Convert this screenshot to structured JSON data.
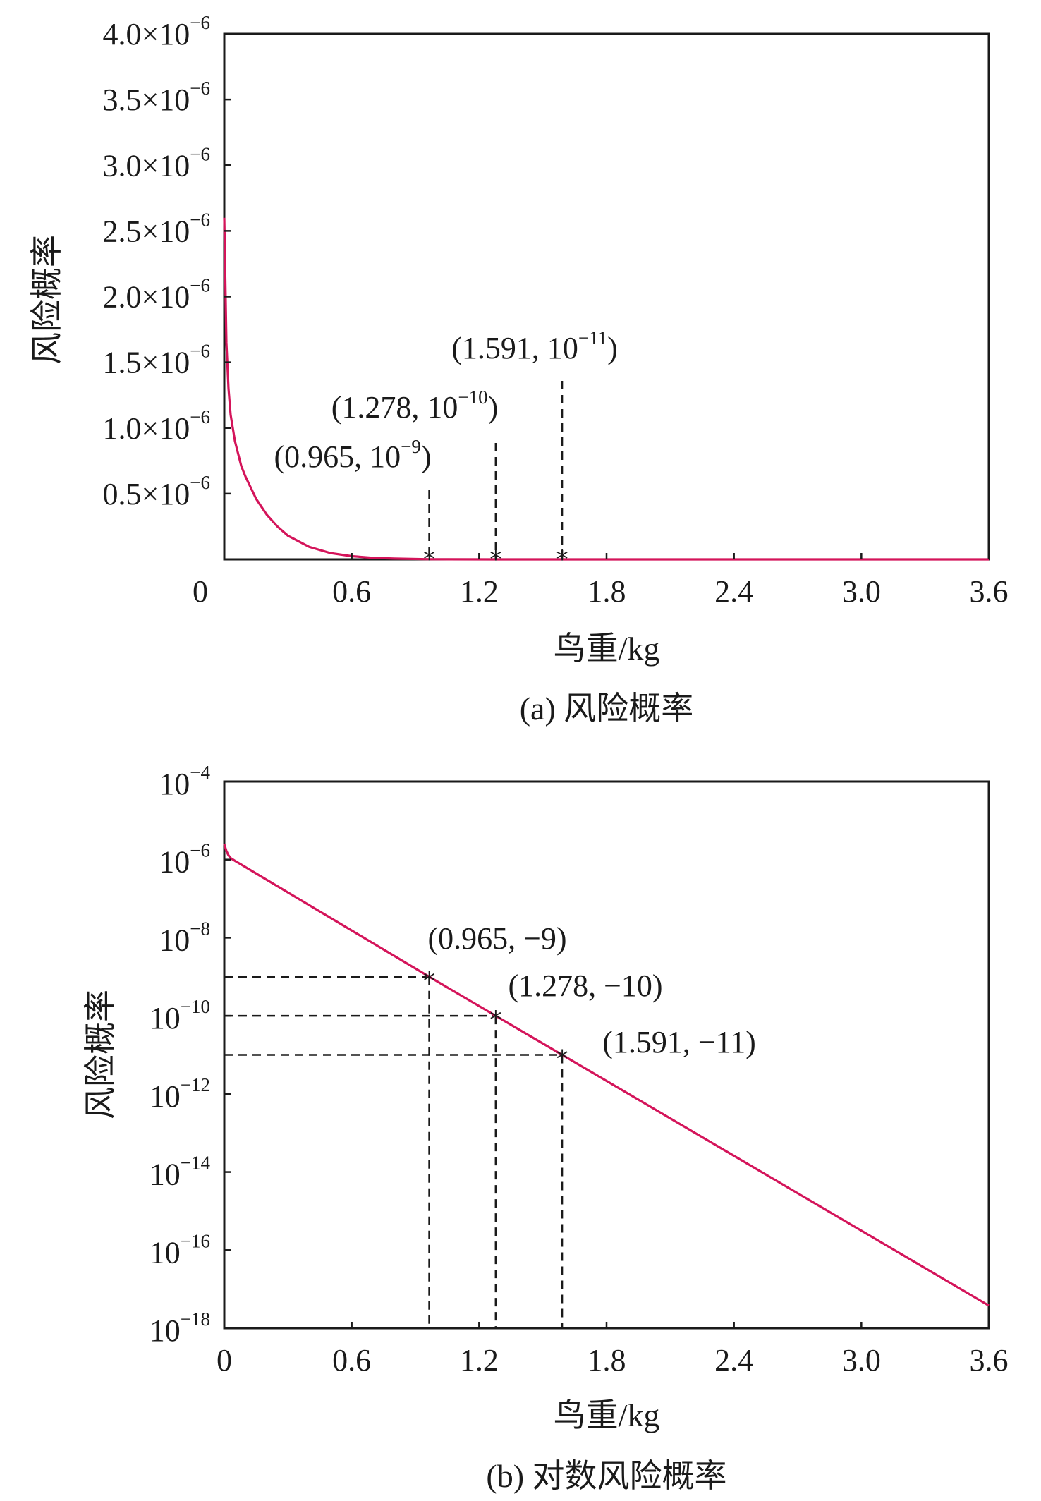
{
  "chart_data": [
    {
      "panel": "a",
      "type": "line",
      "caption": "(a) 风险概率",
      "xlabel": "鸟重/kg",
      "ylabel": "风险概率",
      "xlim": [
        0,
        3.6
      ],
      "ylim": [
        0,
        4e-06
      ],
      "xticks": [
        "0",
        "0.6",
        "1.2",
        "1.8",
        "2.4",
        "3.0",
        "3.6"
      ],
      "yticks": [
        {
          "mantissa": "0.5×10",
          "exp": "−6"
        },
        {
          "mantissa": "1.0×10",
          "exp": "−6"
        },
        {
          "mantissa": "1.5×10",
          "exp": "−6"
        },
        {
          "mantissa": "2.0×10",
          "exp": "−6"
        },
        {
          "mantissa": "2.5×10",
          "exp": "−6"
        },
        {
          "mantissa": "3.0×10",
          "exp": "−6"
        },
        {
          "mantissa": "3.5×10",
          "exp": "−6"
        },
        {
          "mantissa": "4.0×10",
          "exp": "−6"
        }
      ],
      "grid": false,
      "series": [
        {
          "color": "#d4145a",
          "x": [
            0.0,
            0.01,
            0.02,
            0.03,
            0.05,
            0.08,
            0.1,
            0.15,
            0.2,
            0.25,
            0.3,
            0.4,
            0.5,
            0.6,
            0.7,
            0.8,
            0.965,
            1.278,
            1.591,
            2.0,
            2.4,
            3.0,
            3.6
          ],
          "y": [
            2.6e-06,
            1.65e-06,
            1.3e-06,
            1.1e-06,
            9e-07,
            7.1e-07,
            6.3e-07,
            4.6e-07,
            3.4e-07,
            2.5e-07,
            1.8e-07,
            9.5e-08,
            4.8e-08,
            2.4e-08,
            1.2e-08,
            6e-09,
            1e-09,
            1e-10,
            1e-11,
            0,
            0,
            0,
            0
          ]
        }
      ],
      "markers": [
        {
          "x": 0.965,
          "label": "(0.965, 10",
          "exp": "−9",
          "close": ")"
        },
        {
          "x": 1.278,
          "label": "(1.278, 10",
          "exp": "−10",
          "close": ")"
        },
        {
          "x": 1.591,
          "label": "(1.591, 10",
          "exp": "−11",
          "close": ")"
        }
      ]
    },
    {
      "panel": "b",
      "type": "line",
      "caption": "(b) 对数风险概率",
      "xlabel": "鸟重/kg",
      "ylabel": "风险概率",
      "xlim": [
        0,
        3.6
      ],
      "ylim_log10": [
        -18,
        -4
      ],
      "yscale": "log",
      "xticks": [
        "0",
        "0.6",
        "1.2",
        "1.8",
        "2.4",
        "3.0",
        "3.6"
      ],
      "yticks": [
        {
          "base": "10",
          "exp": "−4"
        },
        {
          "base": "10",
          "exp": "−6"
        },
        {
          "base": "10",
          "exp": "−8"
        },
        {
          "base": "10",
          "exp": "−10"
        },
        {
          "base": "10",
          "exp": "−12"
        },
        {
          "base": "10",
          "exp": "−14"
        },
        {
          "base": "10",
          "exp": "−16"
        },
        {
          "base": "10",
          "exp": "−18"
        }
      ],
      "grid": false,
      "series": [
        {
          "color": "#d4145a",
          "x": [
            0.0,
            0.01,
            0.02,
            0.03,
            0.05,
            0.965,
            1.278,
            1.591,
            3.6
          ],
          "log10_y": [
            -5.6,
            -5.78,
            -5.89,
            -5.96,
            -6.03,
            -9,
            -10,
            -11,
            -17.42
          ]
        }
      ],
      "markers": [
        {
          "x": 0.965,
          "log10_y": -9,
          "label": "(0.965, −9)"
        },
        {
          "x": 1.278,
          "log10_y": -10,
          "label": "(1.278, −10)"
        },
        {
          "x": 1.591,
          "log10_y": -11,
          "label": "(1.591, −11)"
        }
      ]
    }
  ]
}
